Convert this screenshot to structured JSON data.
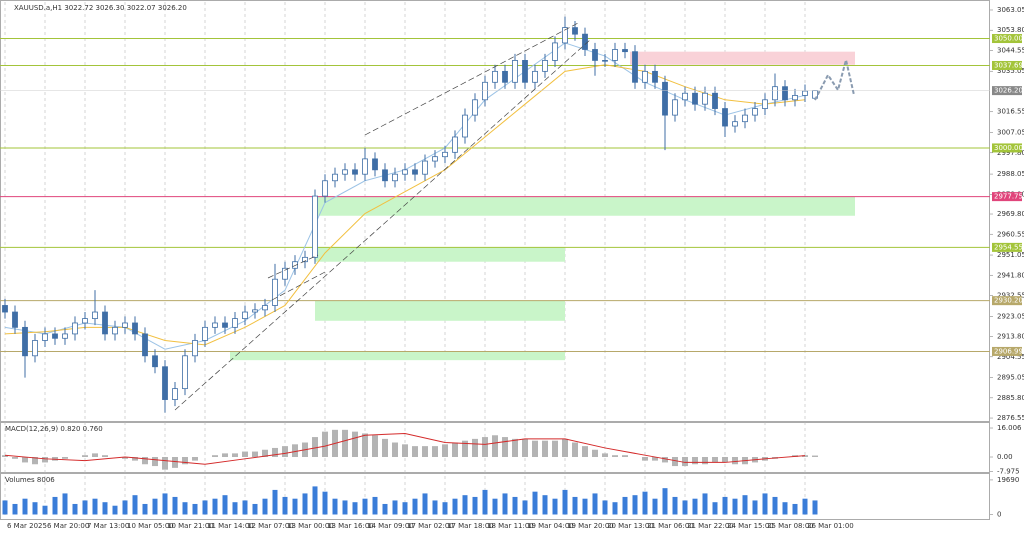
{
  "chart_data": [
    {
      "type": "candlestick",
      "title": "XAUUSD.a,H1 3022.72 3026.30 3022.07 3026.20",
      "open": [
        2928,
        2925,
        2918,
        2905,
        2912,
        2915,
        2913,
        2915,
        2920,
        2922,
        2925,
        2915,
        2918,
        2920,
        2915,
        2905,
        2900,
        2885,
        2890,
        2905,
        2912,
        2918,
        2920,
        2918,
        2922,
        2925,
        2926,
        2928,
        2940,
        2945,
        2948,
        2950,
        2978,
        2985,
        2988,
        2990,
        2988,
        2995,
        2990,
        2985,
        2988,
        2990,
        2988,
        2994,
        2996,
        2998,
        3005,
        3015,
        3022,
        3030,
        3035,
        3030,
        3040,
        3030,
        3035,
        3040,
        3048,
        3055,
        3052,
        3045,
        3040,
        3040,
        3045,
        3044,
        3030,
        3035,
        3030,
        3015,
        3022,
        3025,
        3020,
        3025,
        3018,
        3010,
        3012,
        3015,
        3018,
        3022,
        3028,
        3022,
        3024,
        3022.72
      ],
      "high": [
        2931,
        2928,
        2921,
        2915,
        2918,
        2918,
        2918,
        2923,
        2925,
        2935,
        2928,
        2921,
        2923,
        2923,
        2918,
        2908,
        2903,
        2893,
        2908,
        2915,
        2921,
        2923,
        2923,
        2925,
        2928,
        2929,
        2931,
        2947,
        2948,
        2951,
        2953,
        2981,
        2988,
        2991,
        2993,
        2993,
        3000,
        2998,
        2993,
        2991,
        2993,
        2993,
        2997,
        2999,
        3001,
        3008,
        3018,
        3025,
        3033,
        3038,
        3038,
        3043,
        3043,
        3038,
        3043,
        3051,
        3060,
        3058,
        3055,
        3048,
        3043,
        3048,
        3048,
        3047,
        3038,
        3038,
        3033,
        3025,
        3028,
        3028,
        3028,
        3028,
        3021,
        3015,
        3018,
        3021,
        3025,
        3034,
        3031,
        3027,
        3029,
        3026.3
      ],
      "low": [
        2922,
        2915,
        2895,
        2902,
        2909,
        2910,
        2910,
        2912,
        2917,
        2919,
        2912,
        2912,
        2915,
        2912,
        2902,
        2897,
        2879,
        2882,
        2887,
        2902,
        2909,
        2915,
        2915,
        2915,
        2919,
        2922,
        2923,
        2925,
        2937,
        2942,
        2945,
        2947,
        2975,
        2982,
        2985,
        2985,
        2985,
        2987,
        2982,
        2982,
        2985,
        2985,
        2985,
        2991,
        2993,
        2995,
        3002,
        3012,
        3019,
        3027,
        3027,
        3027,
        3027,
        3027,
        3032,
        3037,
        3045,
        3049,
        3042,
        3033,
        3037,
        3037,
        3041,
        3027,
        3027,
        3027,
        2999,
        3012,
        3019,
        3017,
        3017,
        3015,
        3005,
        3007,
        3009,
        3012,
        3015,
        3019,
        3019,
        3019,
        3021,
        3022.07
      ],
      "close": [
        2925,
        2918,
        2905,
        2912,
        2915,
        2913,
        2915,
        2920,
        2922,
        2925,
        2915,
        2918,
        2920,
        2915,
        2905,
        2900,
        2885,
        2890,
        2905,
        2912,
        2918,
        2920,
        2918,
        2922,
        2925,
        2926,
        2928,
        2940,
        2945,
        2948,
        2950,
        2978,
        2985,
        2988,
        2990,
        2988,
        2995,
        2990,
        2985,
        2988,
        2990,
        2988,
        2994,
        2996,
        2998,
        3005,
        3015,
        3022,
        3030,
        3035,
        3030,
        3040,
        3030,
        3035,
        3040,
        3048,
        3055,
        3052,
        3045,
        3040,
        3040,
        3045,
        3044,
        3030,
        3035,
        3030,
        3015,
        3022,
        3025,
        3020,
        3025,
        3018,
        3010,
        3012,
        3015,
        3018,
        3022,
        3028,
        3022,
        3024,
        3026,
        3026.2
      ],
      "color": "#3f6ea6",
      "xlim": [
        -0.5,
        98.5
      ],
      "xticks": [
        {
          "value": 0,
          "label": "6 Mar 2025"
        },
        {
          "value": 4,
          "label": "6 Mar 20:00"
        },
        {
          "value": 8,
          "label": "7 Mar 13:00"
        },
        {
          "value": 12,
          "label": "10 Mar 05:00"
        },
        {
          "value": 16,
          "label": "10 Mar 21:00"
        },
        {
          "value": 20,
          "label": "11 Mar 14:00"
        },
        {
          "value": 24,
          "label": "12 Mar 07:00"
        },
        {
          "value": 28,
          "label": "13 Mar 00:00"
        },
        {
          "value": 32,
          "label": "13 Mar 16:00"
        },
        {
          "value": 36,
          "label": "14 Mar 09:00"
        },
        {
          "value": 40,
          "label": "17 Mar 02:00"
        },
        {
          "value": 44,
          "label": "17 Mar 18:00"
        },
        {
          "value": 48,
          "label": "18 Mar 11:00"
        },
        {
          "value": 52,
          "label": "19 Mar 04:00"
        },
        {
          "value": 56,
          "label": "19 Mar 20:00"
        },
        {
          "value": 60,
          "label": "20 Mar 13:00"
        },
        {
          "value": 64,
          "label": "21 Mar 06:00"
        },
        {
          "value": 68,
          "label": "21 Mar 22:00"
        },
        {
          "value": 72,
          "label": "24 Mar 15:00"
        },
        {
          "value": 76,
          "label": "25 Mar 08:00"
        },
        {
          "value": 80,
          "label": "26 Mar 01:00"
        }
      ],
      "ylim": [
        2875.2,
        3066.7
      ],
      "yticks": [
        {
          "value": 3063.05,
          "label": "3063.05"
        },
        {
          "value": 3053.8,
          "label": "3053.80"
        },
        {
          "value": 3044.55,
          "label": "3044.55"
        },
        {
          "value": 3035.05,
          "label": "3035.05"
        },
        {
          "value": 3016.55,
          "label": "3016.55"
        },
        {
          "value": 3007.05,
          "label": "3007.05"
        },
        {
          "value": 2997.8,
          "label": "2997.80"
        },
        {
          "value": 2988.05,
          "label": "2988.05"
        },
        {
          "value": 2978.8,
          "label": "2978.80"
        },
        {
          "value": 2969.8,
          "label": "2969.80"
        },
        {
          "value": 2960.55,
          "label": "2960.55"
        },
        {
          "value": 2951.05,
          "label": "2951.05"
        },
        {
          "value": 2941.8,
          "label": "2941.80"
        },
        {
          "value": 2932.55,
          "label": "2932.55"
        },
        {
          "value": 2923.05,
          "label": "2923.05"
        },
        {
          "value": 2913.8,
          "label": "2913.80"
        },
        {
          "value": 2904.55,
          "label": "2904.55"
        },
        {
          "value": 2895.05,
          "label": "2895.05"
        },
        {
          "value": 2885.8,
          "label": "2885.80"
        },
        {
          "value": 2876.55,
          "label": "2876.55"
        }
      ],
      "grid": true,
      "moving_averages": [
        {
          "color": "#9cc3e6",
          "x": [
            0,
            4,
            8,
            12,
            16,
            20,
            24,
            28,
            32,
            36,
            40,
            44,
            48,
            52,
            56,
            60,
            64,
            68,
            72,
            76,
            80
          ],
          "values": [
            2918,
            2915,
            2920,
            2918,
            2908,
            2912,
            2921,
            2935,
            2975,
            2985,
            2990,
            3000,
            3022,
            3035,
            3048,
            3042,
            3030,
            3022,
            3015,
            3020,
            3024
          ]
        },
        {
          "color": "#f2c040",
          "x": [
            0,
            4,
            8,
            12,
            16,
            20,
            24,
            28,
            32,
            36,
            40,
            44,
            48,
            52,
            56,
            60,
            64,
            68,
            72,
            76,
            80
          ],
          "values": [
            2915,
            2916,
            2918,
            2918,
            2912,
            2910,
            2918,
            2928,
            2952,
            2970,
            2980,
            2990,
            3005,
            3020,
            3035,
            3038,
            3035,
            3028,
            3022,
            3020,
            3022
          ]
        }
      ],
      "levels": [
        {
          "value": 3050,
          "label": "3050.00",
          "color": "#a3c43a"
        },
        {
          "value": 3037.69,
          "label": "3037.69",
          "color": "#a3c43a"
        },
        {
          "value": 3000,
          "label": "3000.00",
          "color": "#a3c43a"
        },
        {
          "value": 2977.75,
          "label": "2977.75",
          "color": "#e0457b"
        },
        {
          "value": 2954.55,
          "label": "2954.55",
          "color": "#a3c43a"
        },
        {
          "value": 2930.2,
          "label": "2930.20",
          "color": "#b7a86a"
        },
        {
          "value": 2906.99,
          "label": "2906.99",
          "color": "#b7a86a"
        }
      ],
      "zones": [
        {
          "from": 2977.75,
          "to": 2969,
          "start": 31,
          "end": 85,
          "color": "#c9f5c9"
        },
        {
          "from": 2954.55,
          "to": 2948,
          "start": 31,
          "end": 56,
          "color": "#c9f5c9"
        },
        {
          "from": 2930.2,
          "to": 2921,
          "start": 31,
          "end": 56,
          "color": "#c9f5c9"
        },
        {
          "from": 2906.99,
          "to": 2903,
          "start": 22.5,
          "end": 56,
          "color": "#c9f5c9"
        },
        {
          "from": 3044,
          "to": 3038,
          "start": 62.5,
          "end": 85,
          "color": "#f9d2d8"
        }
      ],
      "last_price": {
        "value": 3026.2,
        "label": "3026.20"
      }
    },
    {
      "type": "macd",
      "title": "MACD(12,26,9) 0.820 0.760",
      "histogram": [
        1,
        -1,
        -3,
        -4,
        -3,
        -2,
        -1,
        0,
        1,
        2,
        1,
        0,
        -1,
        -2,
        -4,
        -5,
        -7,
        -6,
        -4,
        -2,
        0,
        1,
        2,
        2,
        3,
        3,
        4,
        5,
        6,
        7,
        8,
        11,
        14,
        15,
        15,
        14,
        13,
        12,
        10,
        8,
        7,
        6,
        6,
        6,
        7,
        8,
        9,
        10,
        11,
        12,
        11,
        10,
        10,
        9,
        9,
        9,
        10,
        8,
        6,
        4,
        2,
        1,
        1,
        0,
        -2,
        -2,
        -3,
        -5,
        -5,
        -4,
        -4,
        -3,
        -3,
        -4,
        -4,
        -3,
        -2,
        -1,
        0,
        1,
        1,
        0.8
      ],
      "hist_color": "#b4b4b4",
      "signal": {
        "color": "#d42a2a",
        "x": [
          0,
          4,
          8,
          12,
          16,
          20,
          24,
          28,
          32,
          36,
          40,
          44,
          48,
          52,
          56,
          60,
          64,
          68,
          72,
          76,
          80
        ],
        "values": [
          1,
          -1,
          -2,
          0,
          -2,
          -4,
          -1,
          2,
          6,
          12,
          13,
          8,
          7,
          10,
          10,
          5,
          1,
          -3,
          -3,
          -1,
          0.76
        ]
      },
      "xlim": [
        -0.5,
        98.5
      ],
      "ylim": [
        -8.28,
        18.77
      ],
      "yticks": [
        16.006,
        {
          "value": 0,
          "label": "0.00"
        },
        -7.975
      ]
    },
    {
      "type": "bar",
      "title": "Volumes 8006",
      "values": [
        8000,
        6000,
        9000,
        7000,
        5000,
        10000,
        12000,
        6000,
        8000,
        9000,
        7000,
        5000,
        8000,
        11000,
        6000,
        9000,
        12000,
        10000,
        7000,
        6000,
        8000,
        9000,
        11000,
        7000,
        8000,
        6000,
        9000,
        14000,
        10000,
        9000,
        12000,
        16000,
        13000,
        9000,
        8000,
        7000,
        9000,
        10000,
        6000,
        8000,
        7000,
        9000,
        12000,
        8000,
        7000,
        9000,
        11000,
        10000,
        14000,
        9000,
        12000,
        10000,
        8000,
        13000,
        11000,
        9000,
        14000,
        10000,
        9000,
        12000,
        8000,
        7000,
        10000,
        11000,
        13000,
        9000,
        15000,
        10000,
        8000,
        9000,
        12000,
        7000,
        10000,
        9000,
        11000,
        8000,
        12000,
        10000,
        7000,
        6000,
        9000,
        8006
      ],
      "color": "#3b7dd8",
      "xlim": [
        -0.5,
        98.5
      ],
      "ylim": [
        -2000,
        23065
      ],
      "yticks": [
        19690,
        0
      ]
    }
  ]
}
